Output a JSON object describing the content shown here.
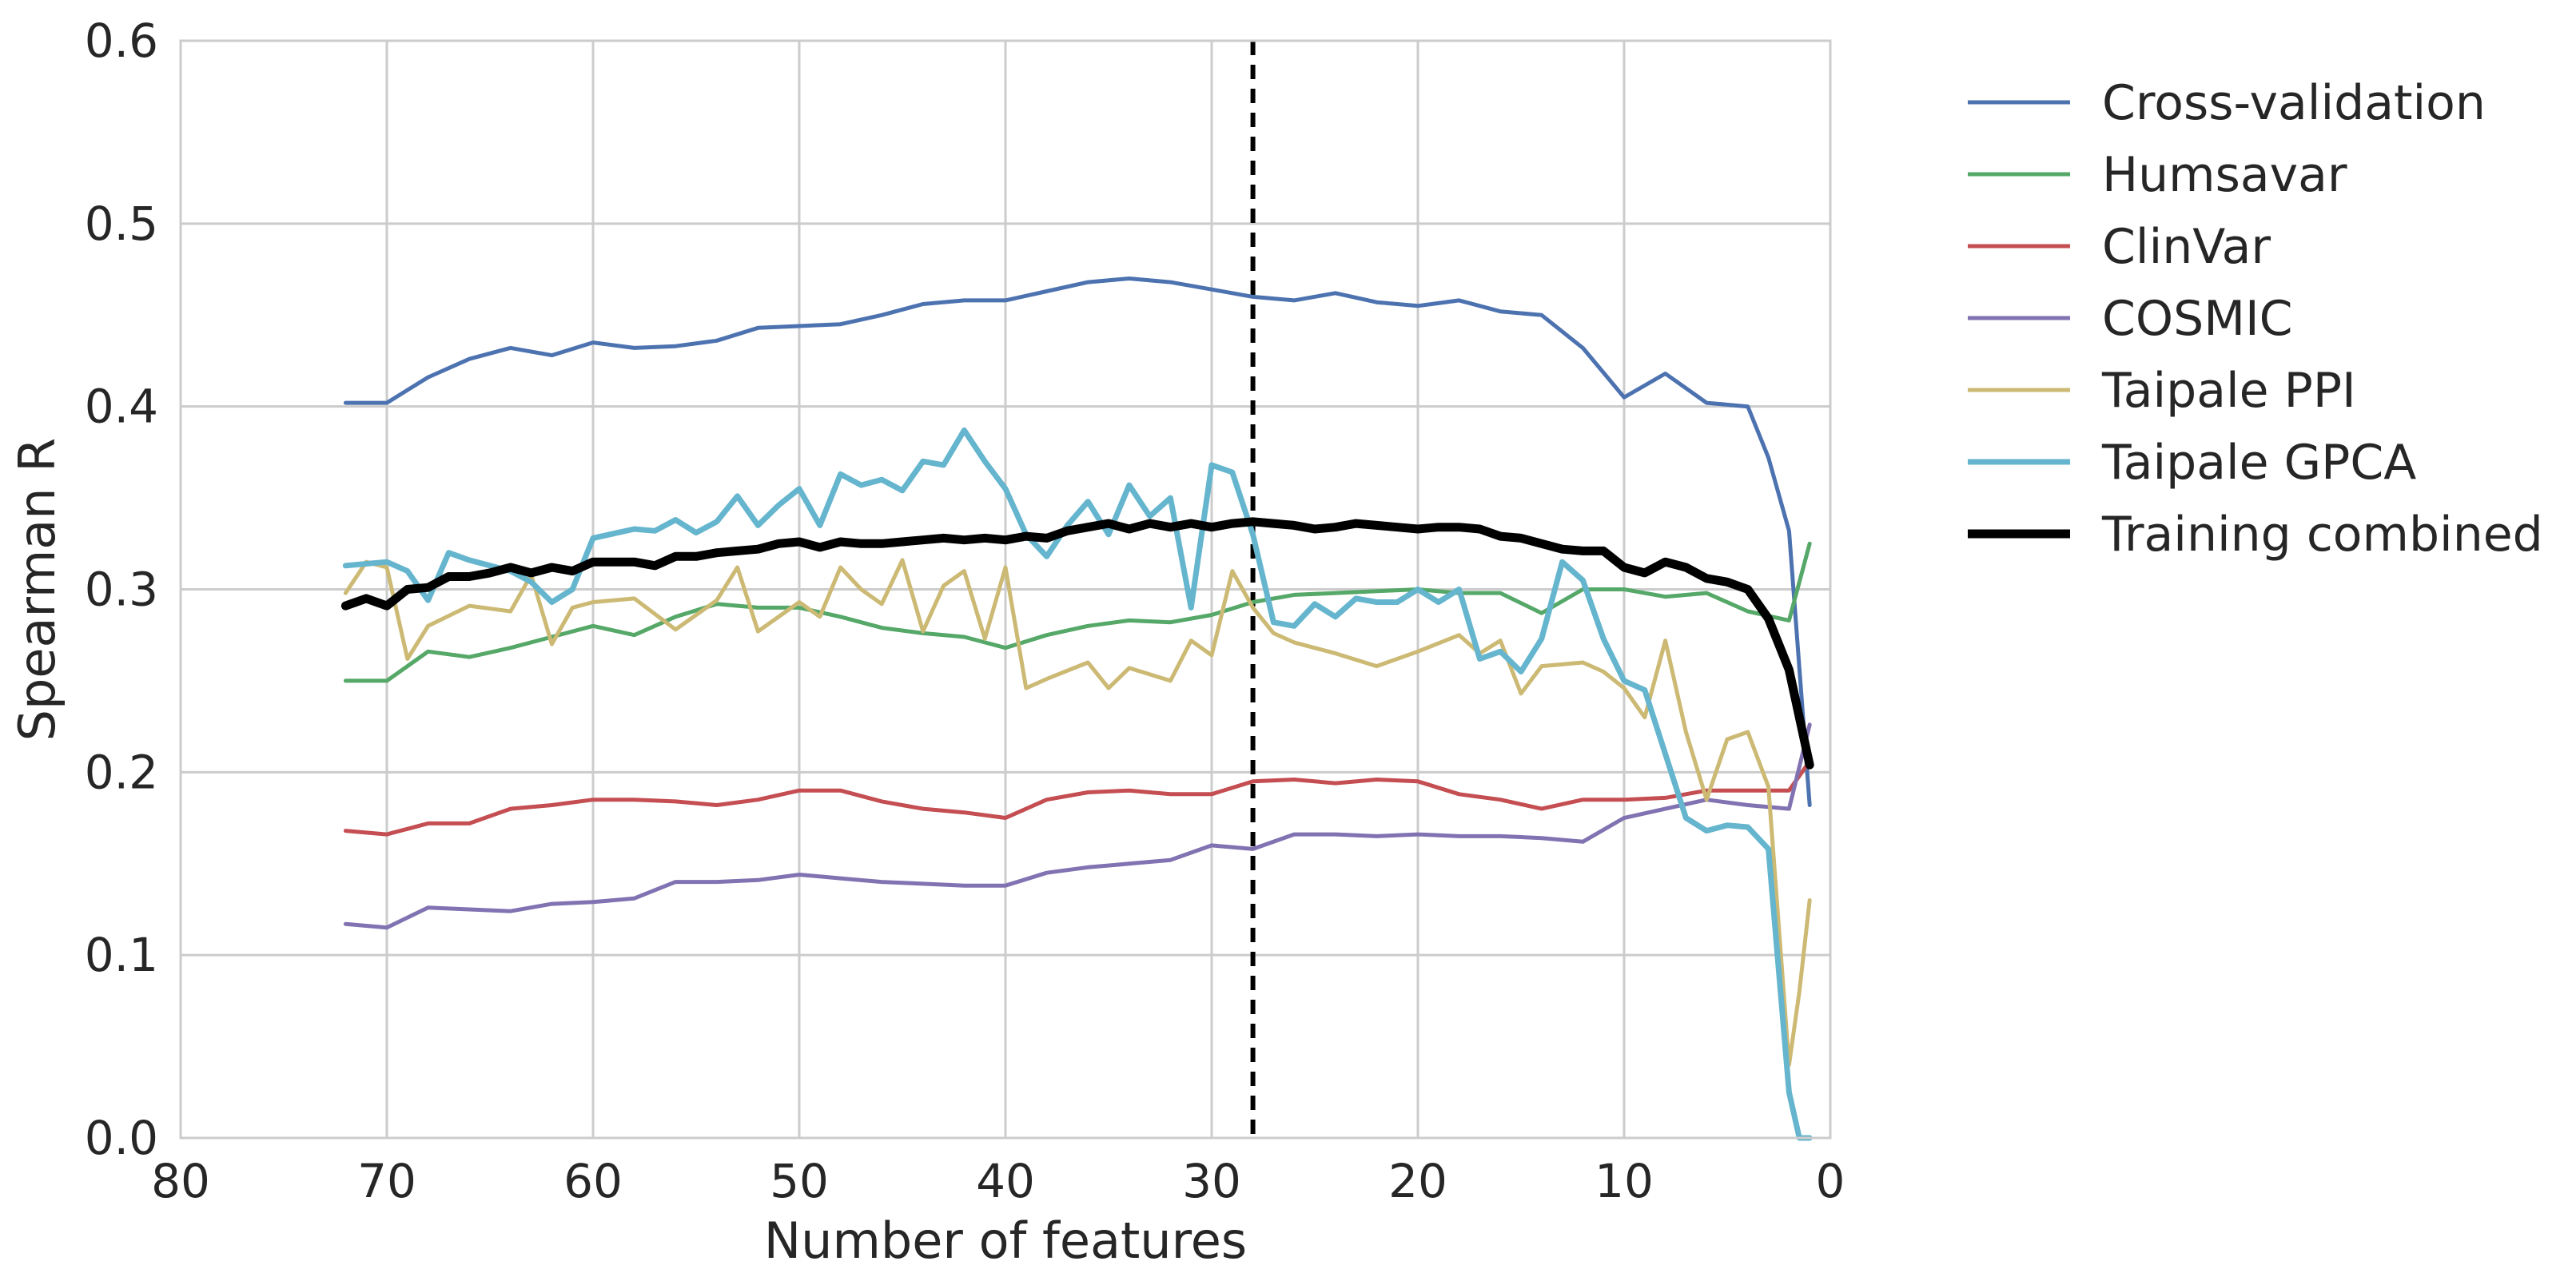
{
  "chart_data": {
    "type": "line",
    "title": "",
    "xlabel": "Number of features",
    "ylabel": "Spearman R",
    "xlim": [
      80,
      0
    ],
    "ylim": [
      0.0,
      0.6
    ],
    "x_reversed": true,
    "xticks": [
      "80",
      "70",
      "60",
      "50",
      "40",
      "30",
      "20",
      "10",
      "0"
    ],
    "yticks": [
      "0.0",
      "0.1",
      "0.2",
      "0.3",
      "0.4",
      "0.5",
      "0.6"
    ],
    "grid": true,
    "legend_position": "outside-right",
    "reference_line": {
      "x": 28,
      "style": "dashed",
      "color": "#000000"
    },
    "series": [
      {
        "name": "Cross-validation",
        "color": "#4c72b0",
        "x": [
          72,
          70,
          68,
          66,
          64,
          62,
          60,
          58,
          56,
          54,
          52,
          50,
          48,
          46,
          44,
          42,
          40,
          38,
          36,
          34,
          32,
          30,
          28,
          26,
          24,
          22,
          20,
          18,
          16,
          14,
          12,
          10,
          8,
          6,
          4,
          3,
          2,
          1
        ],
        "y": [
          0.402,
          0.402,
          0.416,
          0.426,
          0.432,
          0.428,
          0.435,
          0.432,
          0.433,
          0.436,
          0.443,
          0.444,
          0.445,
          0.45,
          0.456,
          0.458,
          0.458,
          0.463,
          0.468,
          0.47,
          0.468,
          0.464,
          0.46,
          0.458,
          0.462,
          0.457,
          0.455,
          0.458,
          0.452,
          0.45,
          0.432,
          0.405,
          0.418,
          0.402,
          0.4,
          0.372,
          0.332,
          0.182
        ]
      },
      {
        "name": "Humsavar",
        "color": "#55a868",
        "x": [
          72,
          70,
          68,
          66,
          64,
          62,
          60,
          58,
          56,
          54,
          52,
          50,
          48,
          46,
          44,
          42,
          40,
          38,
          36,
          34,
          32,
          30,
          28,
          26,
          24,
          22,
          20,
          18,
          16,
          14,
          12,
          10,
          8,
          6,
          4,
          2,
          1
        ],
        "y": [
          0.25,
          0.25,
          0.266,
          0.263,
          0.268,
          0.274,
          0.28,
          0.275,
          0.285,
          0.292,
          0.29,
          0.29,
          0.285,
          0.279,
          0.276,
          0.274,
          0.268,
          0.275,
          0.28,
          0.283,
          0.282,
          0.286,
          0.293,
          0.297,
          0.298,
          0.299,
          0.3,
          0.298,
          0.298,
          0.287,
          0.3,
          0.3,
          0.296,
          0.298,
          0.288,
          0.283,
          0.325
        ]
      },
      {
        "name": "ClinVar",
        "color": "#c44e52",
        "x": [
          72,
          70,
          68,
          66,
          64,
          62,
          60,
          58,
          56,
          54,
          52,
          50,
          48,
          46,
          44,
          42,
          40,
          38,
          36,
          34,
          32,
          30,
          28,
          26,
          24,
          22,
          20,
          18,
          16,
          14,
          12,
          10,
          8,
          6,
          4,
          2,
          1
        ],
        "y": [
          0.168,
          0.166,
          0.172,
          0.172,
          0.18,
          0.182,
          0.185,
          0.185,
          0.184,
          0.182,
          0.185,
          0.19,
          0.19,
          0.184,
          0.18,
          0.178,
          0.175,
          0.185,
          0.189,
          0.19,
          0.188,
          0.188,
          0.195,
          0.196,
          0.194,
          0.196,
          0.195,
          0.188,
          0.185,
          0.18,
          0.185,
          0.185,
          0.186,
          0.19,
          0.19,
          0.19,
          0.206
        ]
      },
      {
        "name": "COSMIC",
        "color": "#8172b2",
        "x": [
          72,
          70,
          68,
          66,
          64,
          62,
          60,
          58,
          56,
          54,
          52,
          50,
          48,
          46,
          44,
          42,
          40,
          38,
          36,
          34,
          32,
          30,
          28,
          26,
          24,
          22,
          20,
          18,
          16,
          14,
          12,
          10,
          8,
          6,
          4,
          2,
          1
        ],
        "y": [
          0.117,
          0.115,
          0.126,
          0.125,
          0.124,
          0.128,
          0.129,
          0.131,
          0.14,
          0.14,
          0.141,
          0.144,
          0.142,
          0.14,
          0.139,
          0.138,
          0.138,
          0.145,
          0.148,
          0.15,
          0.152,
          0.16,
          0.158,
          0.166,
          0.166,
          0.165,
          0.166,
          0.165,
          0.165,
          0.164,
          0.162,
          0.175,
          0.18,
          0.185,
          0.182,
          0.18,
          0.226
        ]
      },
      {
        "name": "Taipale PPI",
        "color": "#ccb974",
        "x": [
          72,
          71,
          70,
          69,
          68,
          66,
          64,
          63,
          62,
          61,
          60,
          58,
          56,
          54,
          53,
          52,
          50,
          49,
          48,
          47,
          46,
          45,
          44,
          43,
          42,
          41,
          40,
          39,
          38,
          36,
          35,
          34,
          32,
          31,
          30,
          29,
          28,
          27,
          26,
          24,
          22,
          20,
          18,
          17,
          16,
          15,
          14,
          12,
          11,
          10,
          9,
          8,
          7,
          6,
          5,
          4,
          3,
          2,
          1.5,
          1
        ],
        "y": [
          0.298,
          0.315,
          0.312,
          0.262,
          0.28,
          0.291,
          0.288,
          0.308,
          0.27,
          0.29,
          0.293,
          0.295,
          0.278,
          0.294,
          0.312,
          0.277,
          0.293,
          0.285,
          0.312,
          0.3,
          0.292,
          0.316,
          0.277,
          0.302,
          0.31,
          0.273,
          0.312,
          0.246,
          0.251,
          0.26,
          0.246,
          0.257,
          0.25,
          0.272,
          0.264,
          0.31,
          0.29,
          0.276,
          0.271,
          0.265,
          0.258,
          0.266,
          0.275,
          0.265,
          0.272,
          0.243,
          0.258,
          0.26,
          0.255,
          0.246,
          0.23,
          0.272,
          0.222,
          0.185,
          0.218,
          0.222,
          0.192,
          0.04,
          0.08,
          0.13
        ]
      },
      {
        "name": "Taipale GPCA",
        "color": "#64b5cd",
        "x": [
          72,
          70,
          69,
          68,
          67,
          66,
          64,
          63,
          62,
          61,
          60,
          58,
          57,
          56,
          55,
          54,
          53,
          52,
          51,
          50,
          49,
          48,
          47,
          46,
          45,
          44,
          43,
          42,
          41,
          40,
          39,
          38,
          37,
          36,
          35,
          34,
          33,
          32,
          31,
          30,
          29,
          28,
          27,
          26,
          25,
          24,
          23,
          22,
          21,
          20,
          19,
          18,
          17,
          16,
          15,
          14,
          13,
          12,
          11,
          10,
          9,
          8,
          7,
          6,
          5,
          4,
          3,
          2,
          1.5,
          1
        ],
        "y": [
          0.313,
          0.315,
          0.31,
          0.294,
          0.32,
          0.316,
          0.31,
          0.304,
          0.293,
          0.3,
          0.328,
          0.333,
          0.332,
          0.338,
          0.331,
          0.337,
          0.351,
          0.335,
          0.346,
          0.355,
          0.335,
          0.363,
          0.357,
          0.36,
          0.354,
          0.37,
          0.368,
          0.387,
          0.37,
          0.355,
          0.33,
          0.318,
          0.335,
          0.348,
          0.33,
          0.357,
          0.34,
          0.35,
          0.29,
          0.368,
          0.364,
          0.33,
          0.282,
          0.28,
          0.292,
          0.285,
          0.295,
          0.293,
          0.293,
          0.3,
          0.293,
          0.3,
          0.262,
          0.266,
          0.255,
          0.273,
          0.315,
          0.305,
          0.273,
          0.25,
          0.245,
          0.21,
          0.175,
          0.168,
          0.171,
          0.17,
          0.158,
          0.025,
          0.0,
          0.0
        ]
      },
      {
        "name": "Training combined",
        "color": "#000000",
        "x": [
          72,
          71,
          70,
          69,
          68,
          67,
          66,
          65,
          64,
          63,
          62,
          61,
          60,
          59,
          58,
          57,
          56,
          55,
          54,
          53,
          52,
          51,
          50,
          49,
          48,
          47,
          46,
          45,
          44,
          43,
          42,
          41,
          40,
          39,
          38,
          37,
          36,
          35,
          34,
          33,
          32,
          31,
          30,
          29,
          28,
          27,
          26,
          25,
          24,
          23,
          22,
          21,
          20,
          19,
          18,
          17,
          16,
          15,
          14,
          13,
          12,
          11,
          10,
          9,
          8,
          7,
          6,
          5,
          4,
          3,
          2,
          1
        ],
        "y": [
          0.291,
          0.295,
          0.291,
          0.3,
          0.301,
          0.307,
          0.307,
          0.309,
          0.312,
          0.309,
          0.312,
          0.31,
          0.315,
          0.315,
          0.315,
          0.313,
          0.318,
          0.318,
          0.32,
          0.321,
          0.322,
          0.325,
          0.326,
          0.323,
          0.326,
          0.325,
          0.325,
          0.326,
          0.327,
          0.328,
          0.327,
          0.328,
          0.327,
          0.329,
          0.328,
          0.332,
          0.334,
          0.336,
          0.333,
          0.336,
          0.334,
          0.336,
          0.334,
          0.336,
          0.337,
          0.336,
          0.335,
          0.333,
          0.334,
          0.336,
          0.335,
          0.334,
          0.333,
          0.334,
          0.334,
          0.333,
          0.329,
          0.328,
          0.325,
          0.322,
          0.321,
          0.321,
          0.312,
          0.309,
          0.315,
          0.312,
          0.306,
          0.304,
          0.3,
          0.284,
          0.256,
          0.204
        ]
      }
    ]
  }
}
